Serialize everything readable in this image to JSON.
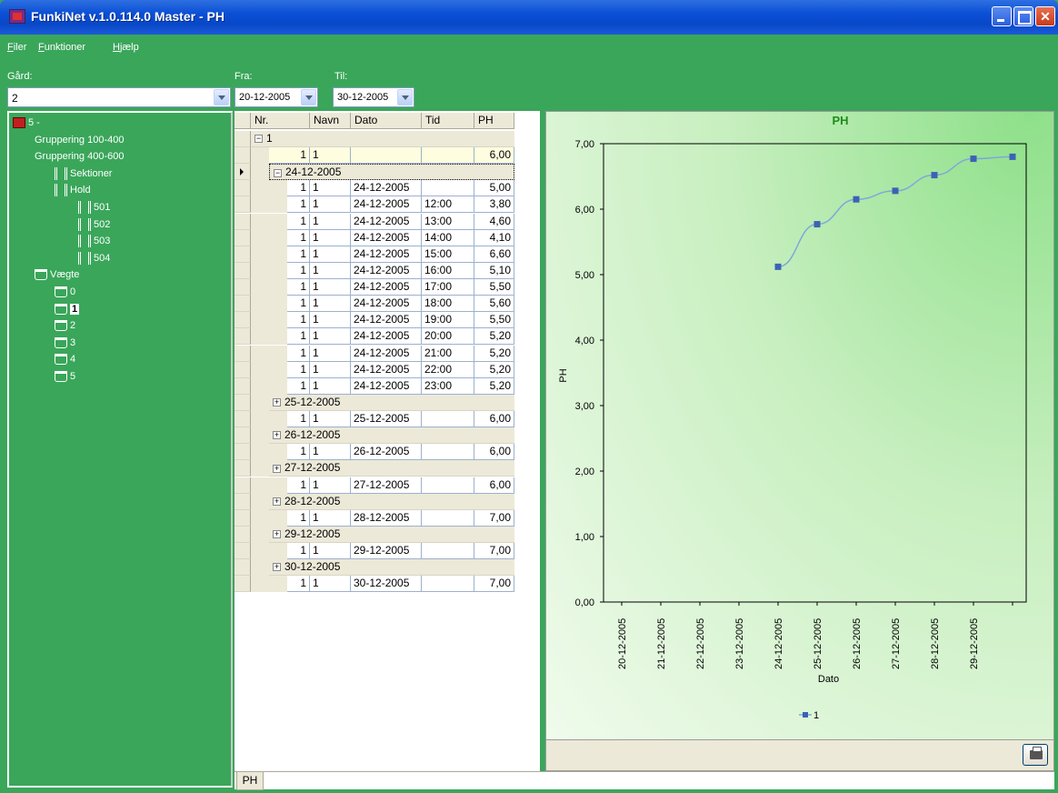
{
  "window": {
    "title": "FunkiNet v.1.0.114.0 Master - PH"
  },
  "menu": [
    {
      "prefix": "",
      "ul": "F",
      "rest": "iler"
    },
    {
      "prefix": "",
      "ul": "F",
      "rest": "unktioner"
    },
    {
      "prefix": "",
      "ul": "H",
      "rest": "jælp"
    }
  ],
  "filters": {
    "gaard_label": "Gård:",
    "gaard_value": "2",
    "fra_label": "Fra:",
    "fra_value": "20-12-2005",
    "til_label": "Til:",
    "til_value": "30-12-2005"
  },
  "tree": [
    {
      "label": "5 -",
      "icon": "farm-icon",
      "level": 0
    },
    {
      "label": "Gruppering 100-400",
      "icon": "",
      "level": 1
    },
    {
      "label": "Gruppering 400-600",
      "icon": "",
      "level": 1
    },
    {
      "label": "Sektioner",
      "icon": "section-icon",
      "level": 2
    },
    {
      "label": "Hold",
      "icon": "section-icon",
      "level": 2
    },
    {
      "label": "501",
      "icon": "pen-icon",
      "level": 3
    },
    {
      "label": "502",
      "icon": "pen-icon",
      "level": 3
    },
    {
      "label": "503",
      "icon": "pen-icon",
      "level": 3
    },
    {
      "label": "504",
      "icon": "pen-icon",
      "level": 3
    },
    {
      "label": "Vægte",
      "icon": "scale-icon",
      "level": 1
    },
    {
      "label": "0",
      "icon": "scale-icon",
      "level": 2
    },
    {
      "label": "1",
      "icon": "scale-icon",
      "level": 2,
      "selected": true
    },
    {
      "label": "2",
      "icon": "scale-icon",
      "level": 2
    },
    {
      "label": "3",
      "icon": "scale-icon",
      "level": 2
    },
    {
      "label": "4",
      "icon": "scale-icon",
      "level": 2
    },
    {
      "label": "5",
      "icon": "scale-icon",
      "level": 2
    }
  ],
  "grid": {
    "headers": [
      "Nr.",
      "Navn",
      "Dato",
      "Tid",
      "PH"
    ],
    "rows": [
      {
        "type": "group",
        "level": 0,
        "label": "1",
        "expanded": true
      },
      {
        "type": "data",
        "level": 0,
        "nr": "1",
        "navn": "1",
        "dato": "",
        "tid": "",
        "ph": "6,00",
        "yellow": true
      },
      {
        "type": "group",
        "level": 1,
        "label": "24-12-2005",
        "expanded": true,
        "current": true
      },
      {
        "type": "data",
        "level": 1,
        "nr": "1",
        "navn": "1",
        "dato": "24-12-2005",
        "tid": "",
        "ph": "5,00"
      },
      {
        "type": "data",
        "level": 1,
        "nr": "1",
        "navn": "1",
        "dato": "24-12-2005",
        "tid": "12:00",
        "ph": "3,80"
      },
      {
        "type": "data",
        "level": 1,
        "nr": "1",
        "navn": "1",
        "dato": "24-12-2005",
        "tid": "13:00",
        "ph": "4,60"
      },
      {
        "type": "data",
        "level": 1,
        "nr": "1",
        "navn": "1",
        "dato": "24-12-2005",
        "tid": "14:00",
        "ph": "4,10"
      },
      {
        "type": "data",
        "level": 1,
        "nr": "1",
        "navn": "1",
        "dato": "24-12-2005",
        "tid": "15:00",
        "ph": "6,60"
      },
      {
        "type": "data",
        "level": 1,
        "nr": "1",
        "navn": "1",
        "dato": "24-12-2005",
        "tid": "16:00",
        "ph": "5,10"
      },
      {
        "type": "data",
        "level": 1,
        "nr": "1",
        "navn": "1",
        "dato": "24-12-2005",
        "tid": "17:00",
        "ph": "5,50"
      },
      {
        "type": "data",
        "level": 1,
        "nr": "1",
        "navn": "1",
        "dato": "24-12-2005",
        "tid": "18:00",
        "ph": "5,60"
      },
      {
        "type": "data",
        "level": 1,
        "nr": "1",
        "navn": "1",
        "dato": "24-12-2005",
        "tid": "19:00",
        "ph": "5,50"
      },
      {
        "type": "data",
        "level": 1,
        "nr": "1",
        "navn": "1",
        "dato": "24-12-2005",
        "tid": "20:00",
        "ph": "5,20"
      },
      {
        "type": "data",
        "level": 1,
        "nr": "1",
        "navn": "1",
        "dato": "24-12-2005",
        "tid": "21:00",
        "ph": "5,20"
      },
      {
        "type": "data",
        "level": 1,
        "nr": "1",
        "navn": "1",
        "dato": "24-12-2005",
        "tid": "22:00",
        "ph": "5,20"
      },
      {
        "type": "data",
        "level": 1,
        "nr": "1",
        "navn": "1",
        "dato": "24-12-2005",
        "tid": "23:00",
        "ph": "5,20"
      },
      {
        "type": "group",
        "level": 1,
        "label": "25-12-2005",
        "expanded": false
      },
      {
        "type": "data",
        "level": 1,
        "nr": "1",
        "navn": "1",
        "dato": "25-12-2005",
        "tid": "",
        "ph": "6,00"
      },
      {
        "type": "group",
        "level": 1,
        "label": "26-12-2005",
        "expanded": false
      },
      {
        "type": "data",
        "level": 1,
        "nr": "1",
        "navn": "1",
        "dato": "26-12-2005",
        "tid": "",
        "ph": "6,00"
      },
      {
        "type": "group",
        "level": 1,
        "label": "27-12-2005",
        "expanded": false
      },
      {
        "type": "data",
        "level": 1,
        "nr": "1",
        "navn": "1",
        "dato": "27-12-2005",
        "tid": "",
        "ph": "6,00"
      },
      {
        "type": "group",
        "level": 1,
        "label": "28-12-2005",
        "expanded": false
      },
      {
        "type": "data",
        "level": 1,
        "nr": "1",
        "navn": "1",
        "dato": "28-12-2005",
        "tid": "",
        "ph": "7,00"
      },
      {
        "type": "group",
        "level": 1,
        "label": "29-12-2005",
        "expanded": false
      },
      {
        "type": "data",
        "level": 1,
        "nr": "1",
        "navn": "1",
        "dato": "29-12-2005",
        "tid": "",
        "ph": "7,00"
      },
      {
        "type": "group",
        "level": 1,
        "label": "30-12-2005",
        "expanded": false
      },
      {
        "type": "data",
        "level": 1,
        "nr": "1",
        "navn": "1",
        "dato": "30-12-2005",
        "tid": "",
        "ph": "7,00"
      }
    ]
  },
  "chart_data": {
    "type": "line",
    "title": "PH",
    "xlabel": "Dato",
    "ylabel": "PH",
    "categories": [
      "20-12-2005",
      "21-12-2005",
      "22-12-2005",
      "23-12-2005",
      "24-12-2005",
      "25-12-2005",
      "26-12-2005",
      "27-12-2005",
      "28-12-2005",
      "29-12-2005",
      ""
    ],
    "yticks": [
      "0,00",
      "1,00",
      "2,00",
      "3,00",
      "4,00",
      "5,00",
      "6,00",
      "7,00"
    ],
    "ylim": [
      0,
      7
    ],
    "series": [
      {
        "name": "1",
        "values": [
          null,
          null,
          null,
          null,
          5.12,
          5.77,
          6.15,
          6.28,
          6.52,
          6.77,
          6.8
        ]
      }
    ],
    "legend": "bottom",
    "colors": {
      "line": "#7fa8d8",
      "marker": "#3d62b5",
      "title": "#1e8c1e"
    }
  },
  "tabs": [
    "PH"
  ]
}
